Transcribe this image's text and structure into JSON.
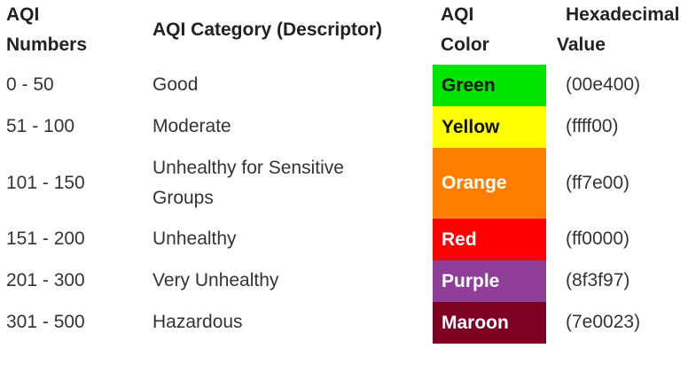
{
  "headers": {
    "numbers_line1": "AQI",
    "numbers_line2": "Numbers",
    "category": "AQI Category (Descriptor)",
    "color_line1": "AQI",
    "color_line2": "Color",
    "hex_line1": "Hexadecimal",
    "hex_line2": "Value"
  },
  "rows": [
    {
      "range": "0 - 50",
      "category": "Good",
      "color_name": "Green",
      "hex": "(00e400)",
      "bg": "#00e400",
      "fg": "#111111"
    },
    {
      "range": "51 - 100",
      "category": "Moderate",
      "color_name": "Yellow",
      "hex": "(ffff00)",
      "bg": "#ffff00",
      "fg": "#111111"
    },
    {
      "range": "101 - 150",
      "category_line1": "Unhealthy for Sensitive",
      "category_line2": "Groups",
      "color_name": "Orange",
      "hex": "(ff7e00)",
      "bg": "#ff7e00",
      "fg": "#ffffff"
    },
    {
      "range": "151 - 200",
      "category": "Unhealthy",
      "color_name": "Red",
      "hex": "(ff0000)",
      "bg": "#ff0000",
      "fg": "#ffffff"
    },
    {
      "range": "201 - 300",
      "category": "Very Unhealthy",
      "color_name": "Purple",
      "hex": "(8f3f97)",
      "bg": "#8f3f97",
      "fg": "#ffffff"
    },
    {
      "range": "301 - 500",
      "category": "Hazardous",
      "color_name": "Maroon",
      "hex": "(7e0023)",
      "bg": "#7e0023",
      "fg": "#ffffff"
    }
  ]
}
